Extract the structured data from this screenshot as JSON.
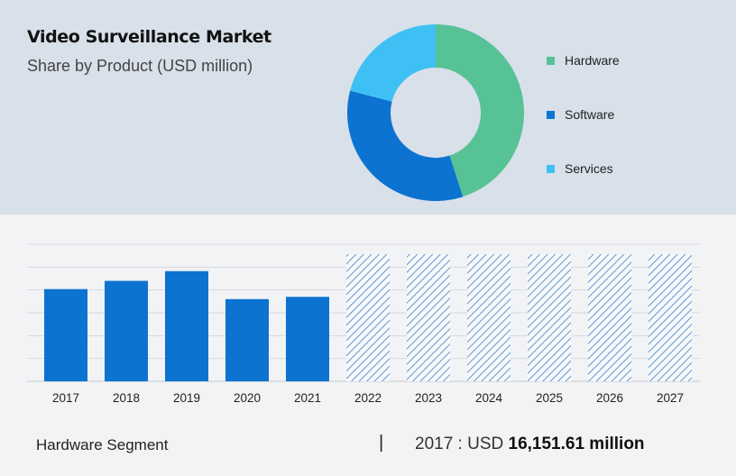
{
  "header": {
    "title": "Video Surveillance Market",
    "subtitle": "Share by Product (USD million)"
  },
  "colors": {
    "hardware": "#57c296",
    "software": "#0c73d1",
    "services": "#3ec0f4",
    "bar": "#0c73d1",
    "hatch": "#3a7fc8",
    "grid": "#d6d9de"
  },
  "chart_data": [
    {
      "type": "pie",
      "labels": [
        "Hardware",
        "Software",
        "Services"
      ],
      "values": [
        45,
        34,
        21
      ]
    },
    {
      "type": "bar",
      "categories": [
        "2017",
        "2018",
        "2019",
        "2020",
        "2021",
        "2022",
        "2023",
        "2024",
        "2025",
        "2026",
        "2027"
      ],
      "values": [
        16151.61,
        17600,
        19300,
        14400,
        14800,
        null,
        null,
        null,
        null,
        null,
        null
      ],
      "projected": [
        false,
        false,
        false,
        false,
        false,
        true,
        true,
        true,
        true,
        true,
        true
      ],
      "ylim": [
        0,
        24000
      ],
      "grid": true
    }
  ],
  "footer": {
    "segment": "Hardware Segment",
    "separator": "|",
    "year_prefix": "2017 :  USD ",
    "value": "16,151.61 million"
  }
}
